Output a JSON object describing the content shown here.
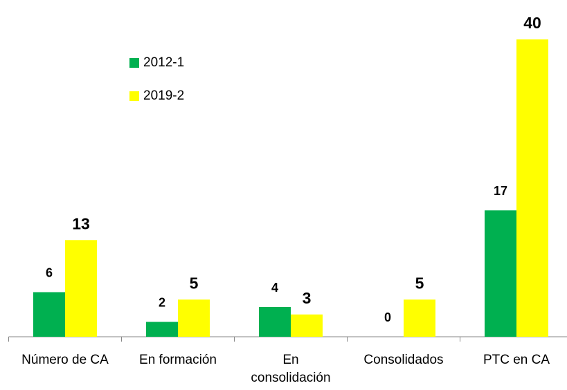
{
  "chart_data": {
    "type": "bar",
    "categories": [
      "Número de CA",
      "En formación",
      "En\nconsolidación",
      "Consolidados",
      "PTC en CA"
    ],
    "series": [
      {
        "name": "2012-1",
        "color": "#00b050",
        "values": [
          6,
          2,
          4,
          0,
          17
        ]
      },
      {
        "name": "2019-2",
        "color": "#ffff00",
        "values": [
          13,
          5,
          3,
          5,
          40
        ]
      }
    ],
    "legend": "upper left"
  }
}
